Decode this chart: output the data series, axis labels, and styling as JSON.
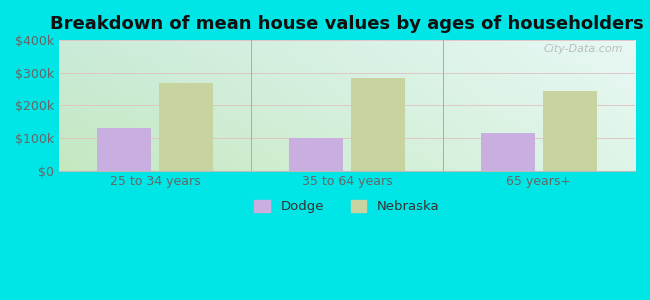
{
  "title": "Breakdown of mean house values by ages of householders",
  "categories": [
    "25 to 34 years",
    "35 to 64 years",
    "65 years+"
  ],
  "dodge_values": [
    130000,
    100000,
    115000
  ],
  "nebraska_values": [
    270000,
    285000,
    245000
  ],
  "dodge_color": "#c9aee0",
  "nebraska_color": "#c8d4a0",
  "ylim": [
    0,
    400000
  ],
  "yticks": [
    0,
    100000,
    200000,
    300000,
    400000
  ],
  "ytick_labels": [
    "$0",
    "$100k",
    "$200k",
    "$300k",
    "$400k"
  ],
  "background_color": "#00e5e5",
  "bar_width": 0.28,
  "legend_labels": [
    "Dodge",
    "Nebraska"
  ],
  "watermark": "City-Data.com",
  "title_fontsize": 13,
  "tick_fontsize": 9,
  "gradient_top_left": "#b8e8c0",
  "gradient_top_right": "#e0f0ee",
  "gradient_bottom_left": "#d8f0d0",
  "gradient_bottom_right": "#f8fffc"
}
